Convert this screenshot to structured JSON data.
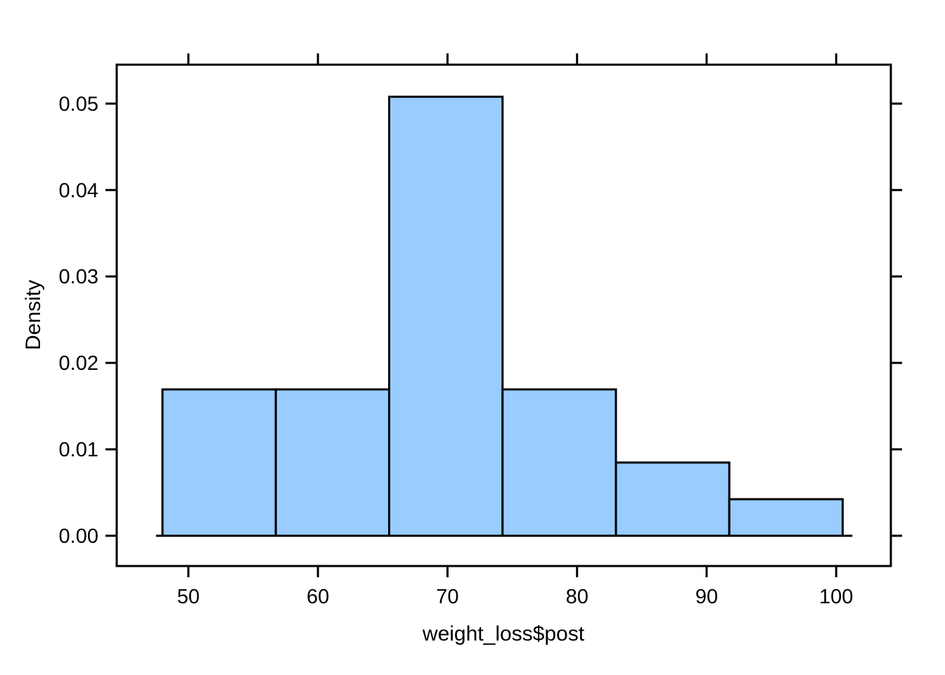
{
  "figure": {
    "background": "#FFFFFF",
    "title": ""
  },
  "chart_data": {
    "type": "bar",
    "subtype": "histogram",
    "title": "",
    "xlabel": "weight_loss$post",
    "ylabel": "Density",
    "grid": false,
    "legend_position": "none",
    "xlim": [
      44.47,
      104.22
    ],
    "ylim": [
      -0.0035,
      0.0545
    ],
    "x_ticks": [
      {
        "value": 50,
        "label": "50"
      },
      {
        "value": 60,
        "label": "60"
      },
      {
        "value": 70,
        "label": "70"
      },
      {
        "value": 80,
        "label": "80"
      },
      {
        "value": 90,
        "label": "90"
      },
      {
        "value": 100,
        "label": "100"
      }
    ],
    "y_ticks": [
      {
        "value": 0.0,
        "label": "0.00"
      },
      {
        "value": 0.01,
        "label": "0.01"
      },
      {
        "value": 0.02,
        "label": "0.02"
      },
      {
        "value": 0.03,
        "label": "0.03"
      },
      {
        "value": 0.04,
        "label": "0.04"
      },
      {
        "value": 0.05,
        "label": "0.05"
      }
    ],
    "bins": [
      {
        "from": 48.0,
        "to": 56.75,
        "density": 0.01693
      },
      {
        "from": 56.75,
        "to": 65.5,
        "density": 0.01693
      },
      {
        "from": 65.5,
        "to": 74.25,
        "density": 0.05079
      },
      {
        "from": 74.25,
        "to": 83.0,
        "density": 0.01693
      },
      {
        "from": 83.0,
        "to": 91.75,
        "density": 0.00847
      },
      {
        "from": 91.75,
        "to": 100.5,
        "density": 0.00423
      }
    ],
    "baseline": {
      "y": 0,
      "from": 47.5,
      "to": 101.25
    },
    "colors": {
      "bar_fill": "#99CCFF",
      "bar_stroke": "#000000",
      "axis": "#000000",
      "text": "#000000",
      "background": "#FFFFFF"
    }
  }
}
